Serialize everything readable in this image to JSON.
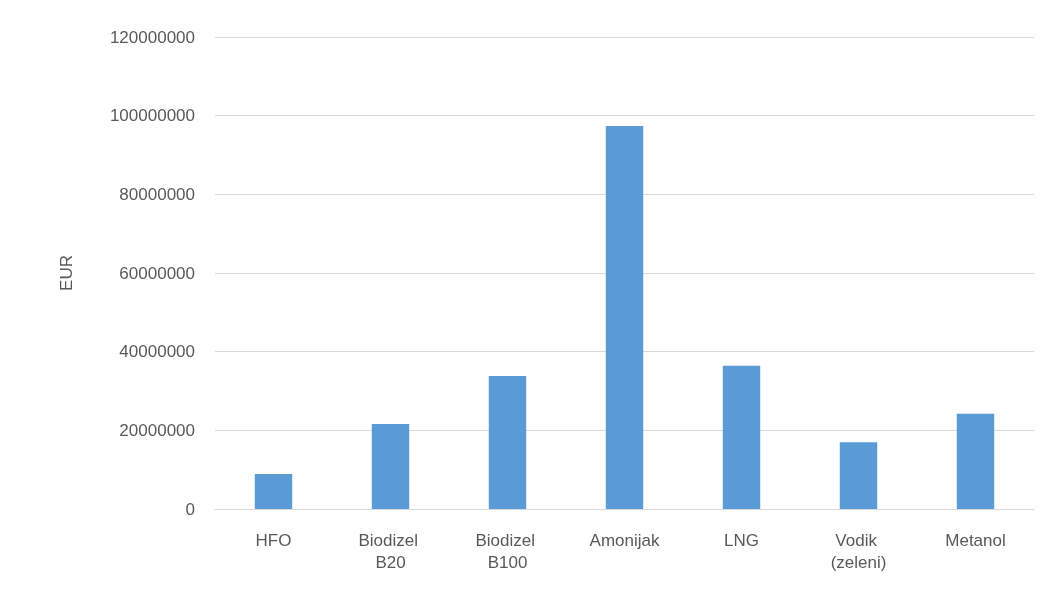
{
  "chart_data": {
    "type": "bar",
    "ylabel": "EUR",
    "categories": [
      "HFO",
      "Biodizel B20",
      "Biodizel B100",
      "Amonijak",
      "LNG",
      "Vodik (zeleni)",
      "Metanol"
    ],
    "values": [
      8900000,
      21600000,
      33800000,
      97400000,
      36400000,
      17000000,
      24200000
    ],
    "color": "#5b9bd5",
    "ylim": [
      0,
      120000000
    ],
    "yticks": [
      0,
      20000000,
      40000000,
      60000000,
      80000000,
      100000000,
      120000000
    ],
    "grid": true
  }
}
